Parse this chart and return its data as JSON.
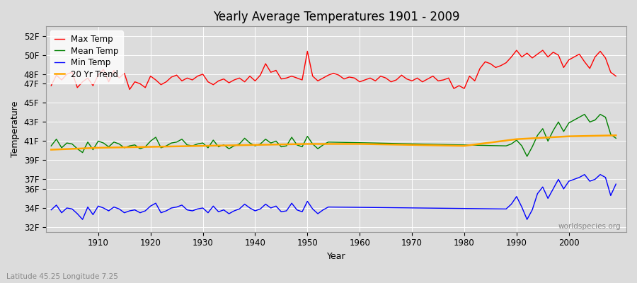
{
  "title": "Yearly Average Temperatures 1901 - 2009",
  "xlabel": "Year",
  "ylabel": "Temperature",
  "x_start": 1901,
  "x_end": 2009,
  "ytick_vals": [
    32,
    34,
    36,
    37,
    39,
    41,
    43,
    45,
    47,
    48,
    50,
    52
  ],
  "ytick_labels": [
    "32F",
    "34F",
    "36F",
    "37F",
    "39F",
    "41F",
    "43F",
    "45F",
    "47F",
    "48F",
    "50F",
    "52F"
  ],
  "ylim": [
    31.5,
    53
  ],
  "xlim": [
    1900,
    2011
  ],
  "legend_labels": [
    "Max Temp",
    "Mean Temp",
    "Min Temp",
    "20 Yr Trend"
  ],
  "legend_colors": [
    "red",
    "green",
    "blue",
    "orange"
  ],
  "bg_color": "#dcdcdc",
  "grid_color": "white",
  "watermark": "worldspecies.org",
  "subtitle": "Latitude 45.25 Longitude 7.25",
  "max_temps": [
    46.8,
    47.9,
    47.4,
    48.0,
    48.2,
    46.6,
    47.2,
    47.6,
    46.8,
    47.9,
    48.5,
    47.2,
    48.4,
    47.6,
    48.1,
    46.4,
    47.2,
    47.0,
    46.6,
    47.8,
    47.4,
    46.9,
    47.2,
    47.7,
    47.9,
    47.3,
    47.6,
    47.4,
    47.8,
    48.0,
    47.2,
    46.9,
    47.3,
    47.5,
    47.1,
    47.4,
    47.6,
    47.2,
    47.8,
    47.3,
    47.9,
    49.1,
    48.2,
    48.4,
    47.5,
    47.6,
    47.8,
    47.6,
    47.4,
    50.4,
    47.8,
    47.3,
    47.6,
    47.9,
    48.1,
    47.9,
    47.5,
    47.7,
    47.6,
    47.2,
    47.4,
    47.6,
    47.3,
    47.8,
    47.6,
    47.2,
    47.4,
    47.9,
    47.5,
    47.3,
    47.6,
    47.2,
    47.5,
    47.8,
    47.3,
    47.4,
    47.6,
    46.5,
    46.8,
    46.5,
    47.8,
    47.3,
    48.6,
    49.3,
    49.1,
    48.7,
    48.9,
    49.2,
    49.8,
    50.5,
    49.8,
    50.2,
    49.7,
    50.1,
    50.5,
    49.8,
    50.3,
    50.0,
    48.7,
    49.5,
    49.8,
    50.1,
    49.3,
    48.6,
    49.8,
    50.4,
    49.7,
    48.2,
    47.8
  ],
  "mean_temps_years": [
    1901,
    1902,
    1903,
    1904,
    1905,
    1906,
    1907,
    1908,
    1909,
    1910,
    1911,
    1912,
    1913,
    1914,
    1915,
    1916,
    1917,
    1918,
    1919,
    1920,
    1921,
    1922,
    1923,
    1924,
    1925,
    1926,
    1927,
    1928,
    1929,
    1930,
    1931,
    1932,
    1933,
    1934,
    1935,
    1936,
    1937,
    1938,
    1939,
    1940,
    1941,
    1942,
    1943,
    1944,
    1945,
    1946,
    1947,
    1948,
    1949,
    1950,
    1951,
    1952,
    1953,
    1954,
    1988,
    1989,
    1990,
    1991,
    1992,
    1993,
    1994,
    1995,
    1996,
    1997,
    1998,
    1999,
    2000,
    2001,
    2002,
    2003,
    2004,
    2005,
    2006,
    2007,
    2008,
    2009
  ],
  "mean_temps": [
    40.5,
    41.2,
    40.3,
    40.8,
    40.7,
    40.2,
    39.8,
    40.9,
    40.1,
    41.0,
    40.8,
    40.4,
    40.9,
    40.7,
    40.3,
    40.5,
    40.6,
    40.2,
    40.4,
    41.0,
    41.4,
    40.3,
    40.5,
    40.8,
    40.9,
    41.2,
    40.6,
    40.5,
    40.7,
    40.8,
    40.3,
    41.1,
    40.4,
    40.6,
    40.2,
    40.5,
    40.7,
    41.3,
    40.8,
    40.5,
    40.7,
    41.2,
    40.8,
    41.0,
    40.4,
    40.5,
    41.4,
    40.6,
    40.4,
    41.5,
    40.7,
    40.2,
    40.6,
    40.9,
    40.5,
    40.7,
    41.1,
    40.5,
    39.4,
    40.4,
    41.6,
    42.3,
    41.0,
    42.1,
    43.0,
    42.0,
    42.9,
    43.2,
    43.5,
    43.8,
    43.0,
    43.2,
    43.8,
    43.5,
    41.7,
    41.3
  ],
  "min_temps_years": [
    1901,
    1902,
    1903,
    1904,
    1905,
    1906,
    1907,
    1908,
    1909,
    1910,
    1911,
    1912,
    1913,
    1914,
    1915,
    1916,
    1917,
    1918,
    1919,
    1920,
    1921,
    1922,
    1923,
    1924,
    1925,
    1926,
    1927,
    1928,
    1929,
    1930,
    1931,
    1932,
    1933,
    1934,
    1935,
    1936,
    1937,
    1938,
    1939,
    1940,
    1941,
    1942,
    1943,
    1944,
    1945,
    1946,
    1947,
    1948,
    1949,
    1950,
    1951,
    1952,
    1953,
    1954,
    1988,
    1989,
    1990,
    1991,
    1992,
    1993,
    1994,
    1995,
    1996,
    1997,
    1998,
    1999,
    2000,
    2001,
    2002,
    2003,
    2004,
    2005,
    2006,
    2007,
    2008,
    2009
  ],
  "min_temps": [
    33.8,
    34.3,
    33.5,
    34.0,
    33.9,
    33.4,
    32.8,
    34.1,
    33.3,
    34.2,
    34.0,
    33.7,
    34.1,
    33.9,
    33.5,
    33.7,
    33.8,
    33.5,
    33.7,
    34.2,
    34.5,
    33.5,
    33.7,
    34.0,
    34.1,
    34.3,
    33.8,
    33.7,
    33.9,
    34.0,
    33.5,
    34.2,
    33.6,
    33.8,
    33.4,
    33.7,
    33.9,
    34.4,
    34.0,
    33.7,
    33.9,
    34.4,
    34.0,
    34.2,
    33.6,
    33.7,
    34.5,
    33.8,
    33.6,
    34.7,
    33.9,
    33.4,
    33.8,
    34.1,
    33.9,
    34.4,
    35.2,
    34.1,
    32.8,
    33.8,
    35.5,
    36.2,
    35.0,
    36.0,
    37.0,
    36.0,
    36.8,
    37.0,
    37.2,
    37.5,
    36.8,
    37.0,
    37.5,
    37.2,
    35.3,
    36.5
  ],
  "trend_years": [
    1901,
    1910,
    1920,
    1930,
    1940,
    1950,
    1960,
    1970,
    1980,
    1990,
    2000,
    2009
  ],
  "trend_vals": [
    40.1,
    40.3,
    40.4,
    40.5,
    40.6,
    40.7,
    40.7,
    40.6,
    40.5,
    41.2,
    41.5,
    41.6
  ]
}
